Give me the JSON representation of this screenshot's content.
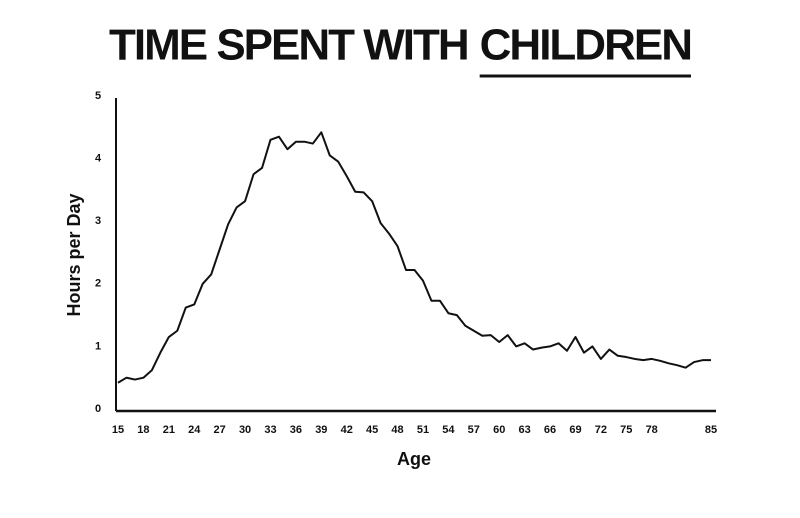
{
  "chart_data": {
    "type": "line",
    "title": "TIME SPENT WITH",
    "title_underlined": "CHILDREN",
    "x_label": "Age",
    "y_label": "Hours per Day",
    "x": [
      15,
      16,
      17,
      18,
      19,
      20,
      21,
      22,
      23,
      24,
      25,
      26,
      27,
      28,
      29,
      30,
      31,
      32,
      33,
      34,
      35,
      36,
      37,
      38,
      39,
      40,
      41,
      42,
      43,
      44,
      45,
      46,
      47,
      48,
      49,
      50,
      51,
      52,
      53,
      54,
      55,
      56,
      57,
      58,
      59,
      60,
      61,
      62,
      63,
      64,
      65,
      66,
      67,
      68,
      69,
      70,
      71,
      72,
      73,
      74,
      75,
      76,
      77,
      78,
      79,
      80,
      81,
      82,
      83,
      84,
      85
    ],
    "series": [
      {
        "name": "Hours per Day",
        "color": "#111111",
        "values": [
          0.42,
          0.5,
          0.47,
          0.5,
          0.62,
          0.9,
          1.15,
          1.25,
          1.62,
          1.67,
          2.0,
          2.15,
          2.55,
          2.95,
          3.22,
          3.32,
          3.75,
          3.85,
          4.3,
          4.35,
          4.15,
          4.27,
          4.27,
          4.24,
          4.42,
          4.05,
          3.95,
          3.72,
          3.47,
          3.46,
          3.32,
          2.97,
          2.8,
          2.6,
          2.22,
          2.22,
          2.05,
          1.73,
          1.73,
          1.53,
          1.5,
          1.33,
          1.25,
          1.17,
          1.18,
          1.07,
          1.18,
          1.0,
          1.05,
          0.95,
          0.98,
          1.0,
          1.05,
          0.93,
          1.15,
          0.9,
          1.0,
          0.8,
          0.95,
          0.85,
          0.83,
          0.8,
          0.78,
          0.8,
          0.77,
          0.73,
          0.7,
          0.66,
          0.75,
          0.78,
          0.78
        ]
      }
    ],
    "xlim": [
      15,
      85
    ],
    "xticks": [
      15,
      18,
      21,
      24,
      27,
      30,
      33,
      36,
      39,
      42,
      45,
      48,
      51,
      54,
      57,
      60,
      63,
      66,
      69,
      72,
      75,
      78,
      85
    ],
    "ylim": [
      0,
      5
    ],
    "yticks": [
      0,
      1,
      2,
      3,
      4,
      5
    ],
    "grid": false
  }
}
